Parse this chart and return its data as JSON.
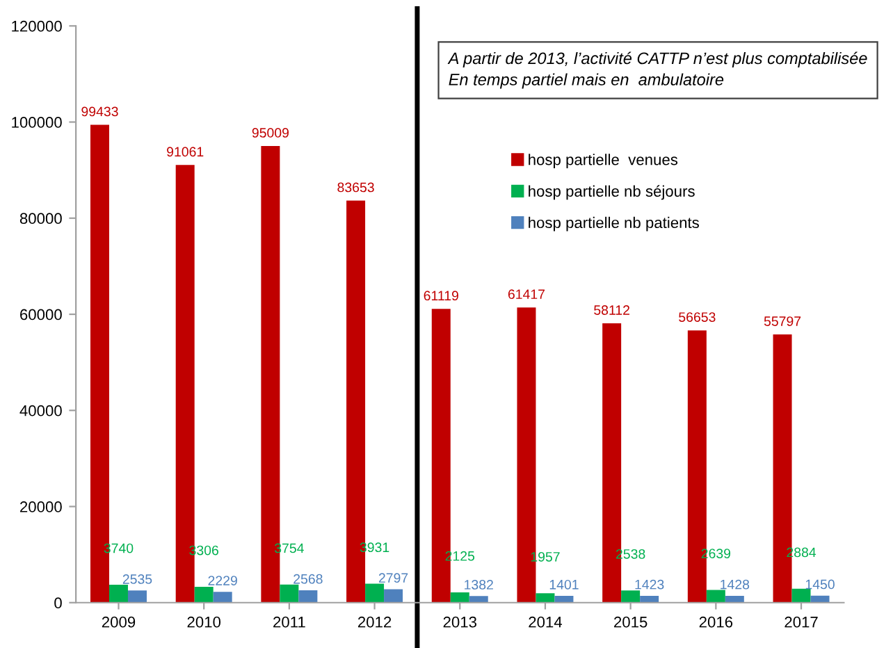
{
  "chart_data": {
    "type": "bar",
    "categories": [
      "2009",
      "2010",
      "2011",
      "2012",
      "2013",
      "2014",
      "2015",
      "2016",
      "2017"
    ],
    "series": [
      {
        "name": "hosp partielle  venues",
        "color": "#c00000",
        "values": [
          99433,
          91061,
          95009,
          83653,
          61119,
          61417,
          58112,
          56653,
          55797
        ]
      },
      {
        "name": "hosp partielle nb séjours",
        "color": "#00b050",
        "values": [
          3740,
          3306,
          3754,
          3931,
          2125,
          1957,
          2538,
          2639,
          2884
        ]
      },
      {
        "name": "hosp partielle nb patients",
        "color": "#4f81bd",
        "values": [
          2535,
          2229,
          2568,
          2797,
          1382,
          1401,
          1423,
          1428,
          1450
        ]
      }
    ],
    "data_labels": true,
    "ylim": [
      0,
      120000
    ],
    "yticks": [
      0,
      20000,
      40000,
      60000,
      80000,
      100000,
      120000
    ],
    "grid": false,
    "legend": "right",
    "annotations": [
      "A partir de 2013, l’activité CATTP n’est plus comptabilisée\nEn temps partiel mais en  ambulatoire"
    ]
  }
}
